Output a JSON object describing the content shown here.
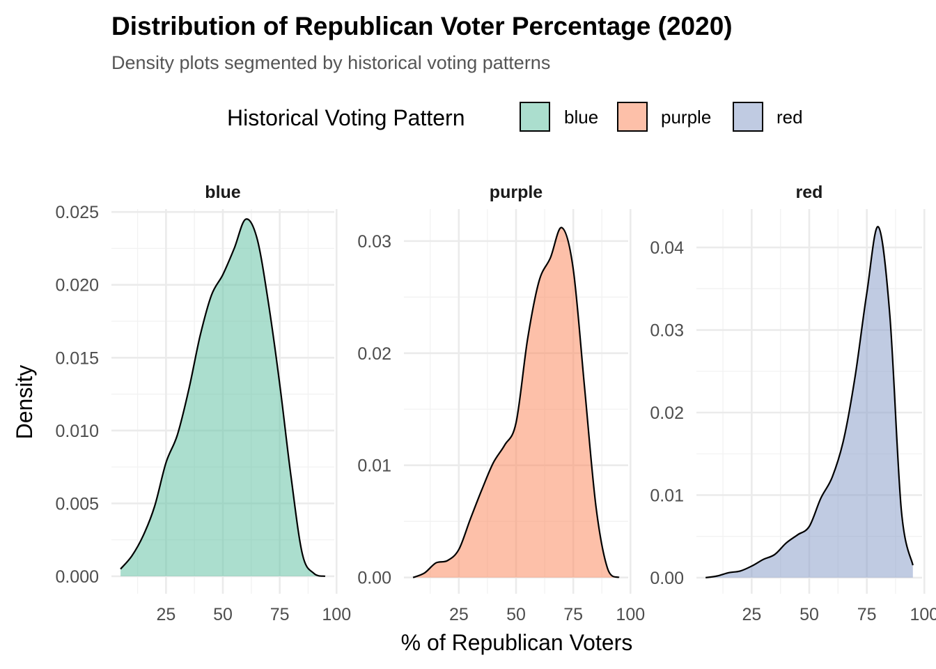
{
  "chart_data": {
    "type": "area",
    "title": "Distribution of Republican Voter Percentage (2020)",
    "subtitle": "Density plots segmented by historical voting patterns",
    "xlabel": "% of Republican Voters",
    "ylabel": "Density",
    "legend": {
      "title": "Historical Voting Pattern",
      "placement": "top",
      "entries": [
        "blue",
        "purple",
        "red"
      ]
    },
    "x_ticks": [
      25,
      50,
      75,
      100
    ],
    "grid": true,
    "facets": [
      {
        "name": "blue",
        "color": "#66C2A5",
        "xlim": [
          1,
          99
        ],
        "ylim": [
          -0.0012,
          0.0252
        ],
        "y_ticks": [
          0.0,
          0.005,
          0.01,
          0.015,
          0.02,
          0.025
        ],
        "y_tick_labels": [
          "0.000",
          "0.005",
          "0.010",
          "0.015",
          "0.020",
          "0.025"
        ],
        "x": [
          5,
          10,
          15,
          20,
          25,
          30,
          35,
          40,
          45,
          50,
          55,
          60,
          65,
          70,
          75,
          80,
          85,
          90,
          95
        ],
        "y": [
          0.0005,
          0.0014,
          0.0028,
          0.0048,
          0.0078,
          0.0097,
          0.0128,
          0.0165,
          0.0193,
          0.0207,
          0.0225,
          0.0245,
          0.0232,
          0.0188,
          0.0132,
          0.0068,
          0.0015,
          0.0002,
          0.0
        ]
      },
      {
        "name": "purple",
        "color": "#FC8D62",
        "xlim": [
          1,
          99
        ],
        "ylim": [
          -0.00145,
          0.03285
        ],
        "y_ticks": [
          0.0,
          0.01,
          0.02,
          0.03
        ],
        "y_tick_labels": [
          "0.00",
          "0.01",
          "0.02",
          "0.03"
        ],
        "x": [
          5,
          10,
          15,
          20,
          25,
          30,
          35,
          40,
          45,
          50,
          55,
          60,
          65,
          70,
          75,
          80,
          85,
          90,
          95
        ],
        "y": [
          0.0,
          0.0004,
          0.0013,
          0.0015,
          0.0025,
          0.0052,
          0.0078,
          0.0102,
          0.0118,
          0.0138,
          0.0212,
          0.0264,
          0.0285,
          0.0312,
          0.0275,
          0.0168,
          0.0062,
          0.0008,
          0.0
        ]
      },
      {
        "name": "red",
        "color": "#8DA0CB",
        "xlim": [
          1,
          99
        ],
        "ylim": [
          -0.00195,
          0.04465
        ],
        "y_ticks": [
          0.0,
          0.01,
          0.02,
          0.03,
          0.04
        ],
        "y_tick_labels": [
          "0.00",
          "0.01",
          "0.02",
          "0.03",
          "0.04"
        ],
        "x": [
          5,
          10,
          15,
          20,
          25,
          30,
          35,
          40,
          45,
          50,
          55,
          60,
          65,
          70,
          75,
          80,
          85,
          90,
          95
        ],
        "y": [
          0.0,
          0.0002,
          0.0006,
          0.0008,
          0.0014,
          0.0022,
          0.0028,
          0.0042,
          0.0052,
          0.0062,
          0.0096,
          0.0122,
          0.0168,
          0.0245,
          0.0345,
          0.0425,
          0.0318,
          0.0082,
          0.0015
        ]
      }
    ]
  }
}
